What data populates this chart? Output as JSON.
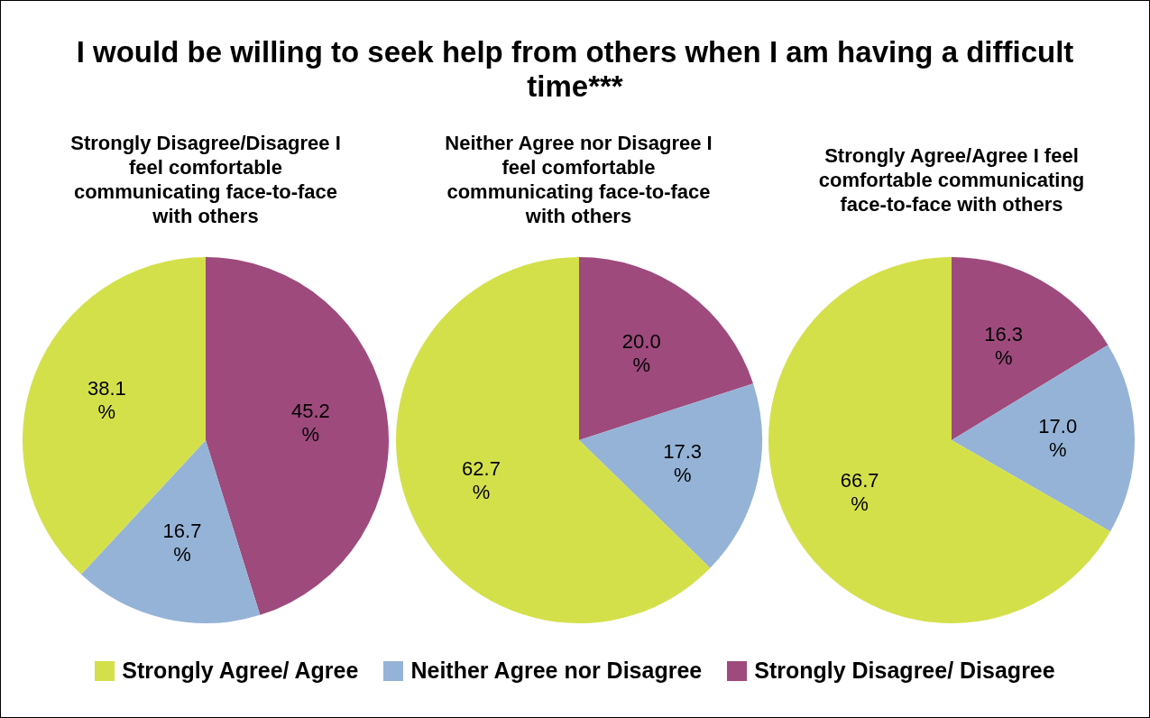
{
  "chart_data": [
    {
      "type": "pie",
      "title": "I would be willing to seek help from others when I am having a difficult time***",
      "subtitle": "Strongly Disagree/Disagree I feel comfortable communicating face-to-face with others",
      "categories": [
        "Strongly Disagree/ Disagree",
        "Neither Agree nor Disagree",
        "Strongly Agree/ Agree"
      ],
      "values": [
        45.2,
        16.7,
        38.1
      ],
      "value_labels": [
        "45.2 %",
        "16.7 %",
        "38.1 %"
      ],
      "colors": [
        "#9e4a7c",
        "#95b3d7",
        "#d4e04a"
      ],
      "legend": "bottom"
    },
    {
      "type": "pie",
      "subtitle": "Neither Agree nor Disagree I feel comfortable communicating face-to-face with others",
      "values": [
        20.0,
        17.3,
        62.7
      ],
      "value_labels": [
        "20.0 %",
        "17.3 %",
        "62.7 %"
      ],
      "colors": [
        "#9e4a7c",
        "#95b3d7",
        "#d4e04a"
      ]
    },
    {
      "type": "pie",
      "subtitle": "Strongly Agree/Agree I feel comfortable communicating face-to-face with others",
      "values": [
        16.3,
        17.0,
        66.7
      ],
      "value_labels": [
        "16.3 %",
        "17.0 %",
        "66.7 %"
      ],
      "colors": [
        "#9e4a7c",
        "#95b3d7",
        "#d4e04a"
      ]
    }
  ]
}
